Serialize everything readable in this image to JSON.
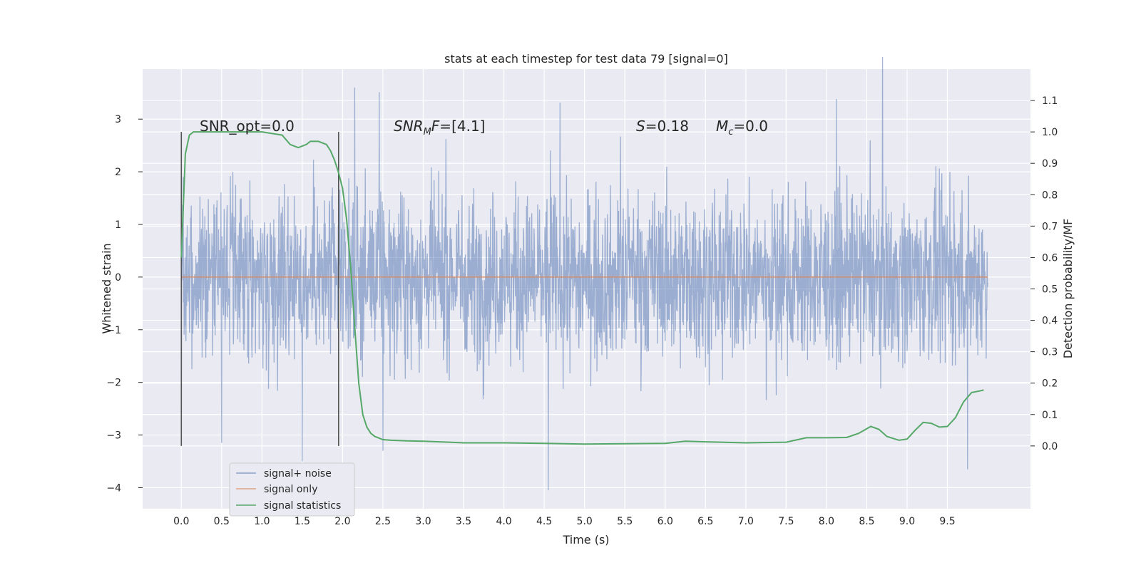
{
  "chart_data": {
    "type": "line",
    "title": "stats at each timestep for test data 79 [signal=0]",
    "xlabel": "Time (s)",
    "ylabel": "Whitened strain",
    "y2label": "Detection probability/MF",
    "xlim": [
      -0.48,
      10.53
    ],
    "ylim": [
      -4.4,
      3.95
    ],
    "y2lim": [
      -0.2,
      1.2
    ],
    "xticks": [
      "0.0",
      "0.5",
      "1.0",
      "1.5",
      "2.0",
      "2.5",
      "3.0",
      "3.5",
      "4.0",
      "4.5",
      "5.0",
      "5.5",
      "6.0",
      "6.5",
      "7.0",
      "7.5",
      "8.0",
      "8.5",
      "9.0",
      "9.5"
    ],
    "yticks": [
      "3",
      "2",
      "1",
      "0",
      "−1",
      "−2",
      "−3",
      "−4"
    ],
    "y2ticks": [
      "1.1",
      "1.0",
      "0.9",
      "0.8",
      "0.7",
      "0.6",
      "0.5",
      "0.4",
      "0.3",
      "0.2",
      "0.1",
      "0.0"
    ],
    "grid": true,
    "legend_position": "lower-left",
    "colors": {
      "noise": "#4c72b0",
      "signal_only": "#dd8452",
      "statistics": "#55a868",
      "background": "#eaeaf2",
      "marker": "#555555"
    },
    "vertical_markers_x": [
      0.0,
      1.95
    ],
    "series": [
      {
        "name": "signal+ noise",
        "style": "dense noise trace",
        "x_range": [
          0.0,
          10.0
        ],
        "envelope_typical": [
          -1.6,
          1.6
        ],
        "extremes": [
          {
            "x": 0.0,
            "y": -3.0
          },
          {
            "x": 0.5,
            "y": -3.15
          },
          {
            "x": 1.5,
            "y": -3.5
          },
          {
            "x": 2.15,
            "y": 3.6
          },
          {
            "x": 2.5,
            "y": -3.3
          },
          {
            "x": 4.55,
            "y": -4.05
          },
          {
            "x": 9.75,
            "y": -3.65
          }
        ]
      },
      {
        "name": "signal only",
        "values_constant": 0.0,
        "x_range": [
          0.0,
          10.0
        ]
      },
      {
        "name": "signal statistics",
        "axis": "y2",
        "x": [
          0.0,
          0.05,
          0.1,
          0.15,
          0.25,
          0.5,
          0.75,
          1.0,
          1.25,
          1.35,
          1.45,
          1.55,
          1.6,
          1.7,
          1.8,
          1.85,
          1.9,
          1.95,
          2.0,
          2.05,
          2.1,
          2.15,
          2.2,
          2.25,
          2.3,
          2.35,
          2.4,
          2.5,
          2.6,
          2.8,
          3.0,
          3.2,
          3.5,
          4.0,
          4.5,
          5.0,
          5.5,
          6.0,
          6.25,
          6.5,
          7.0,
          7.5,
          7.75,
          8.0,
          8.25,
          8.4,
          8.55,
          8.65,
          8.75,
          8.9,
          9.0,
          9.1,
          9.2,
          9.3,
          9.4,
          9.5,
          9.6,
          9.7,
          9.8,
          9.9,
          9.95
        ],
        "y": [
          0.6,
          0.93,
          0.99,
          1.0,
          1.0,
          1.0,
          1.0,
          1.0,
          0.99,
          0.96,
          0.95,
          0.96,
          0.97,
          0.97,
          0.96,
          0.94,
          0.91,
          0.87,
          0.82,
          0.72,
          0.57,
          0.38,
          0.2,
          0.1,
          0.06,
          0.04,
          0.03,
          0.02,
          0.018,
          0.016,
          0.015,
          0.013,
          0.01,
          0.01,
          0.008,
          0.006,
          0.007,
          0.008,
          0.015,
          0.013,
          0.01,
          0.012,
          0.026,
          0.026,
          0.027,
          0.04,
          0.062,
          0.053,
          0.03,
          0.018,
          0.022,
          0.05,
          0.075,
          0.072,
          0.06,
          0.062,
          0.09,
          0.14,
          0.17,
          0.175,
          0.178
        ]
      }
    ],
    "annotations": [
      {
        "id": "snr_opt",
        "text": "SNR_opt=0.0",
        "x": 0.2,
        "y": 2.88
      },
      {
        "id": "snr_mf",
        "text": "[4.1]",
        "x": 2.6,
        "y": 2.88
      },
      {
        "id": "s_value",
        "text": "=0.18",
        "x": 5.6,
        "y": 2.88
      },
      {
        "id": "mc",
        "text": "=0.0",
        "x": 6.6,
        "y": 2.88
      }
    ],
    "legend": {
      "entries": [
        {
          "label": "signal+ noise",
          "color": "#4c72b0"
        },
        {
          "label": "signal only",
          "color": "#dd8452"
        },
        {
          "label": "signal statistics",
          "color": "#55a868"
        }
      ]
    }
  }
}
